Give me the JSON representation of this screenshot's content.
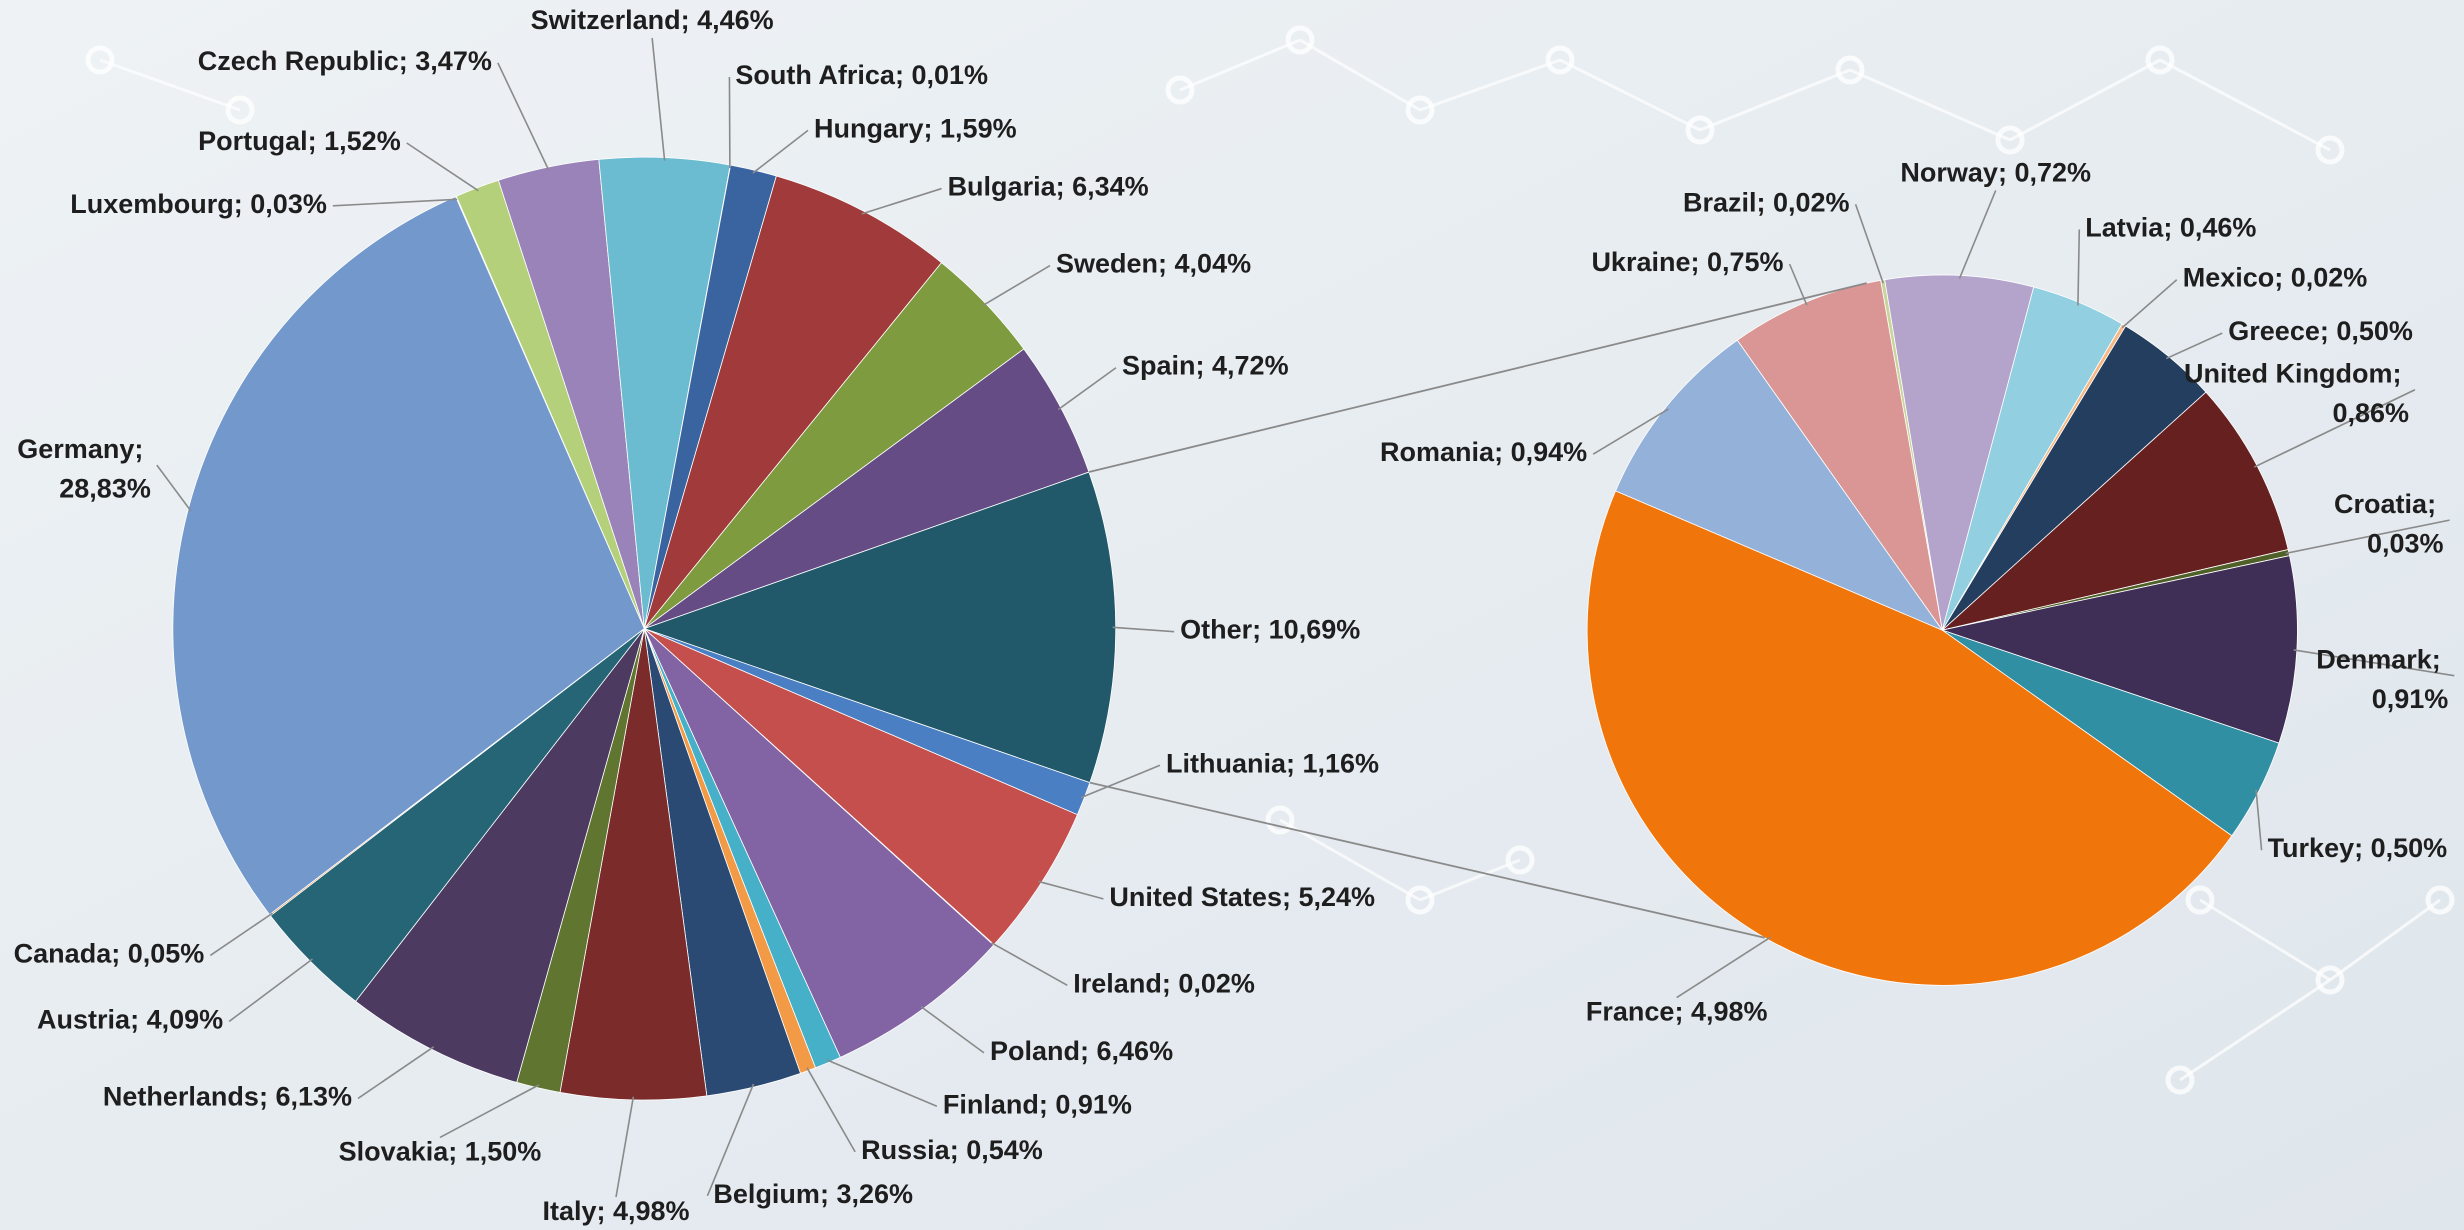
{
  "chart_data": [
    {
      "type": "pie",
      "label_separator": "; ",
      "categories": [
        "Luxembourg",
        "Portugal",
        "Czech Republic",
        "Switzerland",
        "South Africa",
        "Hungary",
        "Bulgaria",
        "Sweden",
        "Spain",
        "Other",
        "Lithuania",
        "United States",
        "Ireland",
        "Poland",
        "Finland",
        "Russia",
        "Belgium",
        "Italy",
        "Slovakia",
        "Netherlands",
        "Austria",
        "Canada",
        "Germany"
      ],
      "values": [
        0.03,
        1.52,
        3.47,
        4.46,
        0.01,
        1.59,
        6.34,
        4.04,
        4.72,
        10.69,
        1.16,
        5.24,
        0.02,
        6.46,
        0.91,
        0.54,
        3.26,
        4.98,
        1.5,
        6.13,
        4.09,
        0.05,
        28.83
      ],
      "value_labels": [
        "0,03%",
        "1,52%",
        "3,47%",
        "4,46%",
        "0,01%",
        "1,59%",
        "6,34%",
        "4,04%",
        "4,72%",
        "10,69%",
        "1,16%",
        "5,24%",
        "0,02%",
        "6,46%",
        "0,91%",
        "0,54%",
        "3,26%",
        "4,98%",
        "1,50%",
        "6,13%",
        "4,09%",
        "0,05%",
        "28,83%"
      ],
      "colors": [
        "#a9bde0",
        "#b5d07a",
        "#9a83b8",
        "#6bbbd1",
        "#d9c9a0",
        "#3a64a0",
        "#a13a3a",
        "#7e9c3f",
        "#654c85",
        "#21596a",
        "#4a7fc3",
        "#c54f4d",
        "#b0b0b0",
        "#8263a3",
        "#47b0c9",
        "#f29a45",
        "#2a4a74",
        "#7a2b2a",
        "#5f7530",
        "#4d3a60",
        "#256575",
        "#e08a3a",
        "#7298cc"
      ]
    },
    {
      "type": "pie",
      "label_separator": "; ",
      "categories": [
        "Brazil",
        "Norway",
        "Latvia",
        "Mexico",
        "Greece",
        "United Kingdom",
        "Croatia",
        "Denmark",
        "Turkey",
        "France",
        "Romania",
        "Ukraine"
      ],
      "values": [
        0.02,
        0.72,
        0.46,
        0.02,
        0.5,
        0.86,
        0.03,
        0.91,
        0.5,
        4.98,
        0.94,
        0.75
      ],
      "value_labels": [
        "0,02%",
        "0,72%",
        "0,46%",
        "0,02%",
        "0,50%",
        "0,86%",
        "0,03%",
        "0,91%",
        "0,50%",
        "4,98%",
        "0,94%",
        "0,75%"
      ],
      "colors": [
        "#c8d49a",
        "#b4a3cb",
        "#92cfe0",
        "#f7b883",
        "#243e60",
        "#65201f",
        "#4f6128",
        "#3f2f56",
        "#318fa4",
        "#f0760b",
        "#93b1d9",
        "#d99694"
      ]
    }
  ]
}
